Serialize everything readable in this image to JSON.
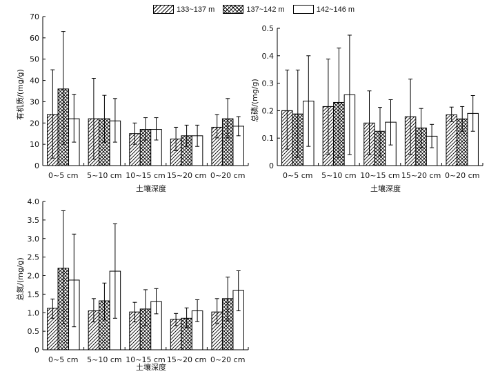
{
  "legend": [
    {
      "name": "133~137 m",
      "pattern": "diag"
    },
    {
      "name": "137~142 m",
      "pattern": "cross"
    },
    {
      "name": "142~146 m",
      "pattern": "plain"
    }
  ],
  "chart_data": [
    {
      "type": "bar",
      "xlabel": "土壤深度",
      "ylabel": "有机质/(mg/g)",
      "ylim": [
        0,
        70
      ],
      "yticks": [
        "0",
        "10",
        "20",
        "30",
        "40",
        "50",
        "60",
        "70"
      ],
      "categories": [
        "0~5 cm",
        "5~10 cm",
        "10~15 cm",
        "15~20 cm",
        "0~20 cm"
      ],
      "series": [
        {
          "name": "133~137 m",
          "values": [
            24,
            22,
            15,
            12.5,
            18
          ],
          "err_upper": [
            45,
            41,
            20,
            18,
            24
          ],
          "err_lower": [
            3.5,
            3,
            10,
            7,
            13
          ]
        },
        {
          "name": "137~142 m",
          "values": [
            36,
            22,
            17,
            14,
            22
          ],
          "err_upper": [
            63,
            33,
            22.5,
            19,
            31.5
          ],
          "err_lower": [
            10,
            11,
            12,
            9,
            13
          ]
        },
        {
          "name": "142~146 m",
          "values": [
            22,
            21,
            17,
            14,
            18.5
          ],
          "err_upper": [
            33.5,
            31.5,
            22.5,
            19,
            23
          ],
          "err_lower": [
            11,
            11,
            12,
            9,
            14
          ]
        }
      ]
    },
    {
      "type": "bar",
      "xlabel": "土壤深度",
      "ylabel": "总磷/(mg/g)",
      "ylim": [
        0,
        0.5
      ],
      "yticks": [
        "0",
        "0.1",
        "0.2",
        "0.3",
        "0.4",
        "0.5"
      ],
      "categories": [
        "0~5 cm",
        "5~10 cm",
        "10~15 cm",
        "15~20 cm",
        "0~20 cm"
      ],
      "series": [
        {
          "name": "133~137 m",
          "values": [
            0.2,
            0.215,
            0.155,
            0.178,
            0.185
          ],
          "err_upper": [
            0.348,
            0.388,
            0.272,
            0.315,
            0.213
          ],
          "err_lower": [
            0.06,
            0.04,
            0.04,
            0.04,
            0.16
          ]
        },
        {
          "name": "137~142 m",
          "values": [
            0.188,
            0.23,
            0.125,
            0.137,
            0.17
          ],
          "err_upper": [
            0.348,
            0.428,
            0.212,
            0.208,
            0.215
          ],
          "err_lower": [
            0.03,
            0.03,
            0.035,
            0.065,
            0.125
          ]
        },
        {
          "name": "142~146 m",
          "values": [
            0.235,
            0.258,
            0.158,
            0.107,
            0.19
          ],
          "err_upper": [
            0.4,
            0.475,
            0.24,
            0.15,
            0.255
          ],
          "err_lower": [
            0.07,
            0.04,
            0.075,
            0.065,
            0.125
          ]
        }
      ]
    },
    {
      "type": "bar",
      "xlabel": "土壤深度",
      "ylabel": "总氮/(mg/g)",
      "ylim": [
        0,
        4.0
      ],
      "yticks": [
        "0",
        "0.5",
        "1.0",
        "1.5",
        "2.0",
        "2.5",
        "3.0",
        "3.5",
        "4.0"
      ],
      "categories": [
        "0~5 cm",
        "5~10 cm",
        "10~15 cm",
        "15~20 cm",
        "0~20 cm"
      ],
      "series": [
        {
          "name": "133~137 m",
          "values": [
            1.12,
            1.05,
            1.02,
            0.82,
            1.02
          ],
          "err_upper": [
            1.37,
            1.38,
            1.28,
            0.98,
            1.38
          ],
          "err_lower": [
            0.85,
            0.75,
            0.75,
            0.65,
            0.7
          ]
        },
        {
          "name": "137~142 m",
          "values": [
            2.2,
            1.32,
            1.1,
            0.85,
            1.38
          ],
          "err_upper": [
            3.75,
            1.8,
            1.62,
            1.13,
            1.96
          ],
          "err_lower": [
            0.7,
            0.8,
            0.65,
            0.6,
            0.78
          ]
        },
        {
          "name": "142~146 m",
          "values": [
            1.88,
            2.12,
            1.3,
            1.05,
            1.6
          ],
          "err_upper": [
            3.12,
            3.4,
            1.65,
            1.35,
            2.13
          ],
          "err_lower": [
            0.62,
            0.85,
            0.97,
            0.76,
            1.05
          ]
        }
      ]
    }
  ]
}
